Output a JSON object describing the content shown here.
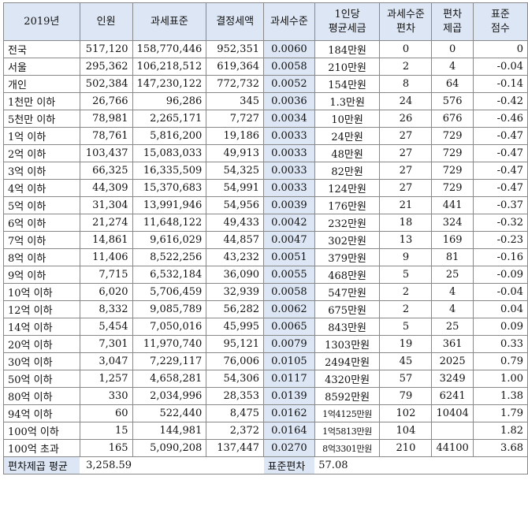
{
  "headers": [
    "2019년",
    "인원",
    "과세표준",
    "결정세액",
    "과세수준",
    "1인당\n평균세금",
    "과세수준\n편차",
    "편차\n제곱",
    "표준\n점수"
  ],
  "rows": [
    [
      "전국",
      "517,120",
      "158,770,446",
      "952,351",
      "0.0060",
      "184만원",
      "0",
      "0",
      "0"
    ],
    [
      "서울",
      "295,362",
      "106,218,512",
      "619,364",
      "0.0058",
      "210만원",
      "2",
      "4",
      "-0.04"
    ],
    [
      "개인",
      "502,384",
      "147,230,122",
      "772,732",
      "0.0052",
      "154만원",
      "8",
      "64",
      "-0.14"
    ],
    [
      "1천만 이하",
      "26,766",
      "96,286",
      "345",
      "0.0036",
      "1.3만원",
      "24",
      "576",
      "-0.42"
    ],
    [
      "5천만 이하",
      "78,981",
      "2,265,171",
      "7,727",
      "0.0034",
      "10만원",
      "26",
      "676",
      "-0.46"
    ],
    [
      "1억 이하",
      "78,761",
      "5,816,200",
      "19,186",
      "0.0033",
      "24만원",
      "27",
      "729",
      "-0.47"
    ],
    [
      "2억 이하",
      "103,437",
      "15,083,033",
      "49,913",
      "0.0033",
      "48만원",
      "27",
      "729",
      "-0.47"
    ],
    [
      "3억 이하",
      "66,325",
      "16,335,509",
      "54,325",
      "0.0033",
      "82만원",
      "27",
      "729",
      "-0.47"
    ],
    [
      "4억 이하",
      "44,309",
      "15,370,683",
      "54,991",
      "0.0033",
      "124만원",
      "27",
      "729",
      "-0.47"
    ],
    [
      "5억 이하",
      "31,304",
      "13,991,946",
      "54,956",
      "0.0039",
      "176만원",
      "21",
      "441",
      "-0.37"
    ],
    [
      "6억 이하",
      "21,274",
      "11,648,122",
      "49,433",
      "0.0042",
      "232만원",
      "18",
      "324",
      "-0.32"
    ],
    [
      "7억 이하",
      "14,861",
      "9,616,029",
      "44,857",
      "0.0047",
      "302만원",
      "13",
      "169",
      "-0.23"
    ],
    [
      "8억 이하",
      "11,406",
      "8,522,256",
      "43,232",
      "0.0051",
      "379만원",
      "9",
      "81",
      "-0.16"
    ],
    [
      "9억 이하",
      "7,715",
      "6,532,184",
      "36,090",
      "0.0055",
      "468만원",
      "5",
      "25",
      "-0.09"
    ],
    [
      "10억 이하",
      "6,020",
      "5,706,459",
      "32,939",
      "0.0058",
      "547만원",
      "2",
      "4",
      "-0.04"
    ],
    [
      "12억 이하",
      "8,332",
      "9,085,789",
      "56,282",
      "0.0062",
      "675만원",
      "2",
      "4",
      "0.04"
    ],
    [
      "14억 이하",
      "5,454",
      "7,050,016",
      "45,995",
      "0.0065",
      "843만원",
      "5",
      "25",
      "0.09"
    ],
    [
      "20억 이하",
      "7,301",
      "11,970,740",
      "95,121",
      "0.0079",
      "1303만원",
      "19",
      "361",
      "0.33"
    ],
    [
      "30억 이하",
      "3,047",
      "7,229,117",
      "76,006",
      "0.0105",
      "2494만원",
      "45",
      "2025",
      "0.79"
    ],
    [
      "50억 이하",
      "1,257",
      "4,658,281",
      "54,306",
      "0.0117",
      "4320만원",
      "57",
      "3249",
      "1.00"
    ],
    [
      "80억 이하",
      "330",
      "2,034,996",
      "28,353",
      "0.0139",
      "8592만원",
      "79",
      "6241",
      "1.38"
    ],
    [
      "94억 이하",
      "60",
      "522,440",
      "8,475",
      "0.0162",
      "1억4125만원",
      "102",
      "10404",
      "1.79"
    ],
    [
      "100억 이하",
      "15",
      "144,981",
      "2,372",
      "0.0164",
      "1억5813만원",
      "104",
      "",
      "1.82"
    ],
    [
      "100억 초과",
      "165",
      "5,090,208",
      "137,447",
      "0.0270",
      "8억3301만원",
      "210",
      "44100",
      "3.68"
    ]
  ],
  "footer": {
    "mean_label": "편차제곱 평균",
    "mean_value": "3,258.59",
    "sd_label": "표준편차",
    "sd_value": "57.08"
  }
}
